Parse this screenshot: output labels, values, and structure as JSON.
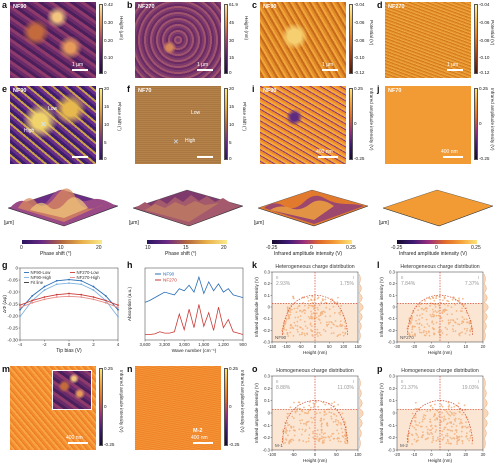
{
  "panels": {
    "a": {
      "letter": "a",
      "sample": "NF90",
      "scale": "1 µm",
      "cbar_unit": "Height (µm)",
      "ticks": [
        "0.42",
        "0.30",
        "0.20",
        "0.10",
        "0"
      ]
    },
    "b": {
      "letter": "b",
      "sample": "NF270",
      "scale": "1 µm",
      "cbar_unit": "Height (nm)",
      "ticks": [
        "61.9",
        "45",
        "30",
        "15",
        "0"
      ]
    },
    "c": {
      "letter": "c",
      "sample": "NF90",
      "scale": "1 µm",
      "cbar_unit": "Potential (V)",
      "ticks": [
        "-0.04",
        "-0.06",
        "-0.08",
        "-0.10",
        "-0.12"
      ]
    },
    "d": {
      "letter": "d",
      "sample": "NF270",
      "scale": "1 µm",
      "cbar_unit": "Potential (V)",
      "ticks": [
        "-0.04",
        "-0.06",
        "-0.08",
        "-0.10",
        "-0.12"
      ]
    },
    "e": {
      "letter": "e",
      "sample": "NF90",
      "scale": "",
      "cbar_unit": "Phase shift (°)",
      "ticks": [
        "20",
        "15",
        "10",
        "5",
        "0"
      ],
      "low": "Low",
      "high": "High"
    },
    "f": {
      "letter": "f",
      "sample": "NF70",
      "scale": "",
      "cbar_unit": "Phase shift (°)",
      "ticks": [
        "20",
        "15",
        "10",
        "5",
        "0"
      ],
      "low": "Low",
      "high": "High"
    },
    "i": {
      "letter": "i",
      "sample": "NF90",
      "scale": "400 nm",
      "cbar_unit": "Infrared amplitude intensity (V)",
      "ticks": [
        "0.25",
        "0",
        "-0.25"
      ]
    },
    "j": {
      "letter": "j",
      "sample": "NF70",
      "scale": "400 nm",
      "cbar_unit": "Infrared amplitude intensity (V)",
      "ticks": [
        "0.25",
        "0",
        "-0.25"
      ]
    },
    "m": {
      "letter": "m",
      "sample": "",
      "scale": "400 nm",
      "cbar_unit": "Infrared amplitude intensity (V)",
      "ticks": [
        "0.25",
        "0",
        "-0.25"
      ]
    },
    "n": {
      "letter": "n",
      "sample": "M-2",
      "scale": "400 nm",
      "cbar_unit": "Infrared amplitude intensity (V)",
      "ticks": [
        "0.25",
        "0",
        "-0.25"
      ]
    }
  },
  "surfaces": {
    "phase_axis": "Phase shift (°)",
    "phase_ticks": [
      "0",
      "5",
      "10",
      "15",
      "20"
    ],
    "ir_axis": "Infrared amplitude intensity (V)",
    "ir_ticks": [
      "-0.25",
      "0",
      "0.25"
    ],
    "um": "[µm]"
  },
  "chart_data": [
    {
      "type": "line",
      "panel": "g",
      "xlabel": "Tip bias (V)",
      "ylabel": "ΔΦ (Δφ)",
      "xlim": [
        -4,
        4
      ],
      "ylim": [
        -0.3,
        0.01
      ],
      "xticks": [
        "-4",
        "-2",
        "0",
        "2",
        "4"
      ],
      "yticks": [
        "0",
        "-0.05",
        "-0.10",
        "-0.15",
        "-0.20",
        "-0.25",
        "-0.30"
      ],
      "legend": [
        "NF90-Low",
        "NF90-High",
        "Fit line",
        "NF270-Low",
        "NF270-High"
      ],
      "series": [
        {
          "name": "NF90-Low",
          "color": "#2a6eb5",
          "x": [
            -4,
            -3,
            -2,
            -1,
            0,
            1,
            2,
            3,
            4
          ],
          "y": [
            -0.17,
            -0.11,
            -0.07,
            -0.045,
            -0.04,
            -0.045,
            -0.07,
            -0.11,
            -0.17
          ]
        },
        {
          "name": "NF90-High",
          "color": "#7fb3e0",
          "x": [
            -4,
            -3,
            -2,
            -1,
            0,
            1,
            2,
            3,
            4
          ],
          "y": [
            -0.2,
            -0.13,
            -0.085,
            -0.06,
            -0.055,
            -0.06,
            -0.085,
            -0.13,
            -0.2
          ]
        },
        {
          "name": "NF270-Low",
          "color": "#c93a36",
          "x": [
            -4,
            -3,
            -2,
            -1,
            0,
            1,
            2,
            3,
            4
          ],
          "y": [
            -0.15,
            -0.13,
            -0.115,
            -0.105,
            -0.1,
            -0.105,
            -0.115,
            -0.13,
            -0.15
          ]
        },
        {
          "name": "NF270-High",
          "color": "#e88b86",
          "x": [
            -4,
            -3,
            -2,
            -1,
            0,
            1,
            2,
            3,
            4
          ],
          "y": [
            -0.16,
            -0.14,
            -0.125,
            -0.115,
            -0.112,
            -0.115,
            -0.125,
            -0.14,
            -0.16
          ]
        }
      ]
    },
    {
      "type": "line",
      "panel": "h",
      "xlabel": "Wave number (cm⁻¹)",
      "ylabel": "Absorption (a.u.)",
      "xticks": [
        "3,600",
        "3,300",
        "3,000",
        "1,500",
        "1,200",
        "900"
      ],
      "legend": [
        "NF90",
        "NF270"
      ],
      "series": [
        {
          "name": "NF90",
          "color": "#2a6eb5",
          "x": [
            0,
            5,
            10,
            15,
            20,
            25,
            30,
            35,
            40,
            45,
            50,
            55,
            60,
            65,
            70,
            75,
            80,
            85,
            90,
            95,
            100
          ],
          "y": [
            0.55,
            0.58,
            0.62,
            0.66,
            0.7,
            0.68,
            0.66,
            0.75,
            0.72,
            0.8,
            0.7,
            0.92,
            0.68,
            0.85,
            0.72,
            0.82,
            0.7,
            0.75,
            0.66,
            0.64,
            0.62
          ]
        },
        {
          "name": "NF270",
          "color": "#c93a36",
          "x": [
            0,
            5,
            10,
            15,
            20,
            25,
            30,
            35,
            40,
            45,
            50,
            55,
            60,
            65,
            70,
            75,
            80,
            85,
            90,
            95,
            100
          ],
          "y": [
            0.08,
            0.08,
            0.09,
            0.12,
            0.1,
            0.1,
            0.12,
            0.38,
            0.15,
            0.45,
            0.18,
            0.52,
            0.2,
            0.4,
            0.14,
            0.48,
            0.18,
            0.3,
            0.12,
            0.1,
            0.08
          ]
        }
      ]
    },
    {
      "type": "scatter",
      "panel": "k",
      "title": "Heterogeneous charge distribution",
      "sample": "NF90",
      "xlabel": "Height (nm)",
      "ylabel": "Infrared amplitude intensity (V)",
      "xlim": [
        -150,
        150
      ],
      "ylim": [
        -0.3,
        0.3
      ],
      "xticks": [
        "-150",
        "-100",
        "-50",
        "0",
        "50",
        "100",
        "150"
      ],
      "yticks": [
        "0.3",
        "0.2",
        "0.1",
        "0",
        "-0.1",
        "-0.2",
        "-0.3"
      ],
      "quadrants": {
        "II": "2.93%",
        "I": "1.75%"
      }
    },
    {
      "type": "scatter",
      "panel": "l",
      "title": "Heterogeneous charge distribution",
      "sample": "NF270",
      "xlabel": "Height (nm)",
      "ylabel": "Infrared amplitude intensity (V)",
      "xlim": [
        -30,
        20
      ],
      "ylim": [
        -0.3,
        0.3
      ],
      "xticks": [
        "-30",
        "-20",
        "-10",
        "0",
        "10",
        "20"
      ],
      "yticks": [
        "0.3",
        "0.2",
        "0.1",
        "0",
        "-0.1",
        "-0.2",
        "-0.3"
      ],
      "quadrants": {
        "II": "7.84%",
        "I": "7.37%"
      }
    },
    {
      "type": "scatter",
      "panel": "o",
      "title": "Homogeneous charge distribution",
      "sample": "M-1",
      "xlabel": "Height (nm)",
      "ylabel": "Infrared amplitude intensity (V)",
      "xlim": [
        -100,
        100
      ],
      "ylim": [
        -0.3,
        0.3
      ],
      "xticks": [
        "-100",
        "-50",
        "0",
        "50",
        "100"
      ],
      "yticks": [
        "0.3",
        "0.2",
        "0.1",
        "0",
        "-0.1",
        "-0.2",
        "-0.3"
      ],
      "quadrants": {
        "II": "8.88%",
        "I": "11.03%"
      }
    },
    {
      "type": "scatter",
      "panel": "p",
      "title": "Homogeneous charge distribution",
      "sample": "M-2",
      "xlabel": "Height (nm)",
      "ylabel": "Infrared amplitude intensity (V)",
      "xlim": [
        -20,
        30
      ],
      "ylim": [
        -0.3,
        0.3
      ],
      "xticks": [
        "-20",
        "-10",
        "0",
        "10",
        "20",
        "30"
      ],
      "yticks": [
        "0.3",
        "0.2",
        "0.1",
        "0",
        "-0.1",
        "-0.2",
        "-0.3"
      ],
      "quadrants": {
        "II": "21.37%",
        "I": "19.03%"
      }
    }
  ],
  "colors": {
    "nf90_blue": "#2a6eb5",
    "nf270_red": "#c93a36",
    "quadrant_dash": "#d0462a",
    "scatter_fill": "#f2b07a",
    "scatter_bg": "#fbe6d4"
  }
}
